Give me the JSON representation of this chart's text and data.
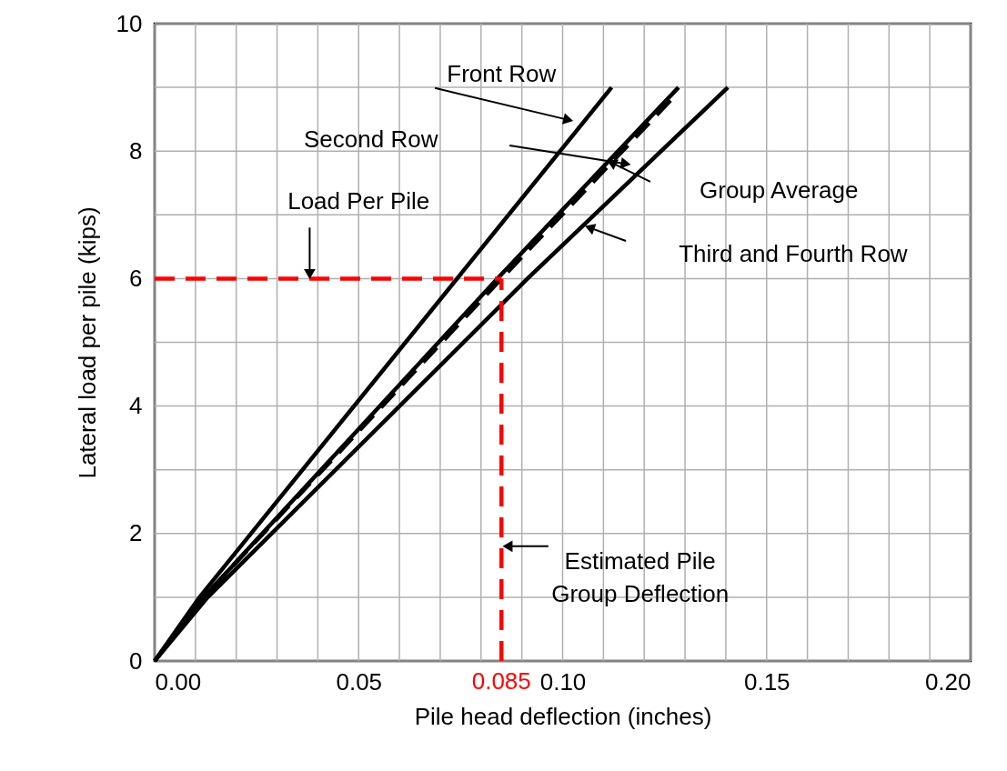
{
  "chart_data": {
    "type": "line",
    "xlabel": "Pile head deflection (inches)",
    "ylabel": "Lateral load per pile (kips)",
    "xlim": [
      0,
      0.2
    ],
    "ylim": [
      0,
      10
    ],
    "xticks": [
      {
        "value": 0,
        "label": "0.00"
      },
      {
        "value": 0.01,
        "label": null
      },
      {
        "value": 0.02,
        "label": null
      },
      {
        "value": 0.03,
        "label": null
      },
      {
        "value": 0.04,
        "label": null
      },
      0.05,
      {
        "value": 0.06,
        "label": null
      },
      {
        "value": 0.07,
        "label": null
      },
      {
        "value": 0.08,
        "label": null
      },
      0.085,
      {
        "value": 0.09,
        "label": null
      },
      {
        "value": 0.1,
        "label": "0.10"
      },
      {
        "value": 0.11,
        "label": null
      },
      {
        "value": 0.12,
        "label": null
      },
      {
        "value": 0.13,
        "label": null
      },
      {
        "value": 0.14,
        "label": null
      },
      0.15,
      {
        "value": 0.16,
        "label": null
      },
      {
        "value": 0.17,
        "label": null
      },
      {
        "value": 0.18,
        "label": null
      },
      {
        "value": 0.19,
        "label": null
      },
      {
        "value": 0.2,
        "label": "0.20"
      }
    ],
    "yticks": [
      0,
      {
        "value": 1,
        "label": null
      },
      2,
      {
        "value": 3,
        "label": null
      },
      4,
      {
        "value": 5,
        "label": null
      },
      6,
      {
        "value": 7,
        "label": null
      },
      8,
      {
        "value": 9,
        "label": null
      },
      10
    ],
    "grid": true,
    "legend": false,
    "marker": "none",
    "series": [
      {
        "color": "#000000",
        "line_style": "solid",
        "x": [
          0,
          0.011,
          0.112
        ],
        "values": [
          0,
          1,
          9
        ]
      },
      {
        "color": "#000000",
        "line_style": "solid",
        "x": [
          0,
          0.012,
          0.084,
          0.1284
        ],
        "values": [
          0,
          1,
          6,
          9
        ]
      },
      {
        "color": "#000000",
        "line_style": "dashed",
        "x": [
          0,
          0.012,
          0.085,
          0.128
        ],
        "values": [
          0,
          1,
          6,
          8.9
        ]
      },
      {
        "color": "#000000",
        "line_style": "solid",
        "x": [
          0,
          0.013,
          0.0914,
          0.1405
        ],
        "values": [
          0,
          1,
          6,
          9
        ]
      }
    ],
    "annotations": [
      {
        "text": "Front Row",
        "x": 0.1014,
        "y": 8.49
      },
      "Second Row",
      "Group Average",
      "Third and Fourth Row"
    ],
    "ref_lines": [
      {
        "axis": "y",
        "value": 6,
        "label": "Load Per Pile",
        "color": "#ff0000",
        "line_style": "dashed"
      },
      {
        "axis": "x",
        "value": 0.085,
        "label": "Estimated Pile\nGroup Deflection",
        "color": "#ff0000",
        "line_style": "dashed"
      }
    ]
  }
}
